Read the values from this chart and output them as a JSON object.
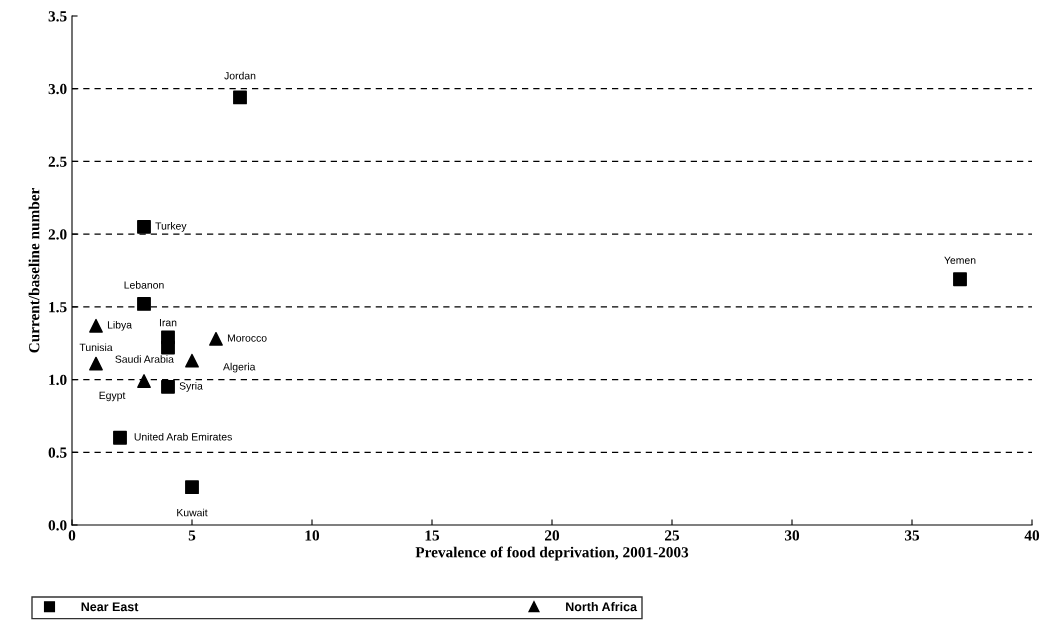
{
  "chart_data": {
    "type": "scatter",
    "xlabel": "Prevalence of food deprivation, 2001-2003",
    "ylabel": "Current/baseline number",
    "xlim": [
      0,
      40
    ],
    "xticks": [
      0,
      5,
      10,
      15,
      20,
      25,
      30,
      35,
      40
    ],
    "ylim": [
      0,
      3.5
    ],
    "yticks": [
      {
        "value": 0,
        "label": "0.0"
      },
      {
        "value": 0.5,
        "label": "0.5"
      },
      {
        "value": 1,
        "label": "1.0"
      },
      {
        "value": 1.5,
        "label": "1.5"
      },
      {
        "value": 2,
        "label": "2.0"
      },
      {
        "value": 2.5,
        "label": "2.5"
      },
      {
        "value": 3,
        "label": "3.0"
      },
      {
        "value": 3.5,
        "label": "3.5"
      }
    ],
    "grid": "y",
    "line_style": "dashed",
    "legend": "bottom",
    "series": [
      {
        "name": "Near East",
        "color": "#000000",
        "marker": "square",
        "x": [
          7,
          3,
          3,
          4,
          4,
          4,
          2,
          5,
          37
        ],
        "values": [
          2.94,
          2.05,
          1.52,
          1.29,
          1.22,
          0.95,
          0.6,
          0.26,
          1.69
        ]
      },
      {
        "name": "North Africa",
        "color": "#000000",
        "marker": "triangle",
        "x": [
          1,
          1,
          3,
          5,
          6
        ],
        "values": [
          1.37,
          1.11,
          0.99,
          1.13,
          1.28
        ]
      }
    ],
    "annotations": [
      {
        "text": "Jordan",
        "x": 7,
        "y": 2.94
      },
      {
        "text": "Turkey",
        "x": 3,
        "y": 2.05
      },
      {
        "text": "Lebanon",
        "x": 3,
        "y": 1.52
      },
      {
        "text": "Iran",
        "x": 4,
        "y": 1.29
      },
      {
        "text": "Saudi Arabia",
        "x": 4,
        "y": 1.22
      },
      {
        "text": "Syria",
        "x": 4,
        "y": 0.95
      },
      {
        "text": "United Arab Emirates",
        "x": 2,
        "y": 0.6
      },
      {
        "text": "Kuwait",
        "x": 5,
        "y": 0.26
      },
      {
        "text": "Yemen",
        "x": 37,
        "y": 1.69
      },
      {
        "text": "Libya",
        "x": 1,
        "y": 1.37
      },
      {
        "text": "Tunisia",
        "x": 1,
        "y": 1.11
      },
      {
        "text": "Egypt",
        "x": 3,
        "y": 0.99
      },
      {
        "text": "Algeria",
        "x": 5,
        "y": 1.13
      },
      {
        "text": "Morocco",
        "x": 6,
        "y": 1.28
      }
    ]
  }
}
